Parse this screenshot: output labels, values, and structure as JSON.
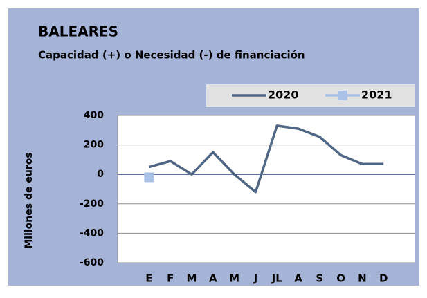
{
  "chart_data": {
    "type": "line",
    "title": "BALEARES",
    "subtitle": "Capacidad (+) o Necesidad (-) de financiación",
    "y_label": "Millones de euros",
    "categories": [
      "E",
      "F",
      "M",
      "A",
      "M",
      "J",
      "JL",
      "A",
      "S",
      "O",
      "N",
      "D"
    ],
    "series": [
      {
        "name": "2020",
        "color": "#4f6685",
        "marker": "none",
        "values": [
          50,
          90,
          0,
          150,
          0,
          -120,
          330,
          310,
          255,
          130,
          70,
          70
        ]
      },
      {
        "name": "2021",
        "color": "#a9c1e6",
        "marker": "square",
        "values": [
          -20,
          null,
          null,
          null,
          null,
          null,
          null,
          null,
          null,
          null,
          null,
          null
        ]
      }
    ],
    "ylim": [
      -600,
      400
    ],
    "yticks": [
      -600,
      -400,
      -200,
      0,
      200,
      400
    ],
    "grid": true,
    "legend": "top-right"
  }
}
